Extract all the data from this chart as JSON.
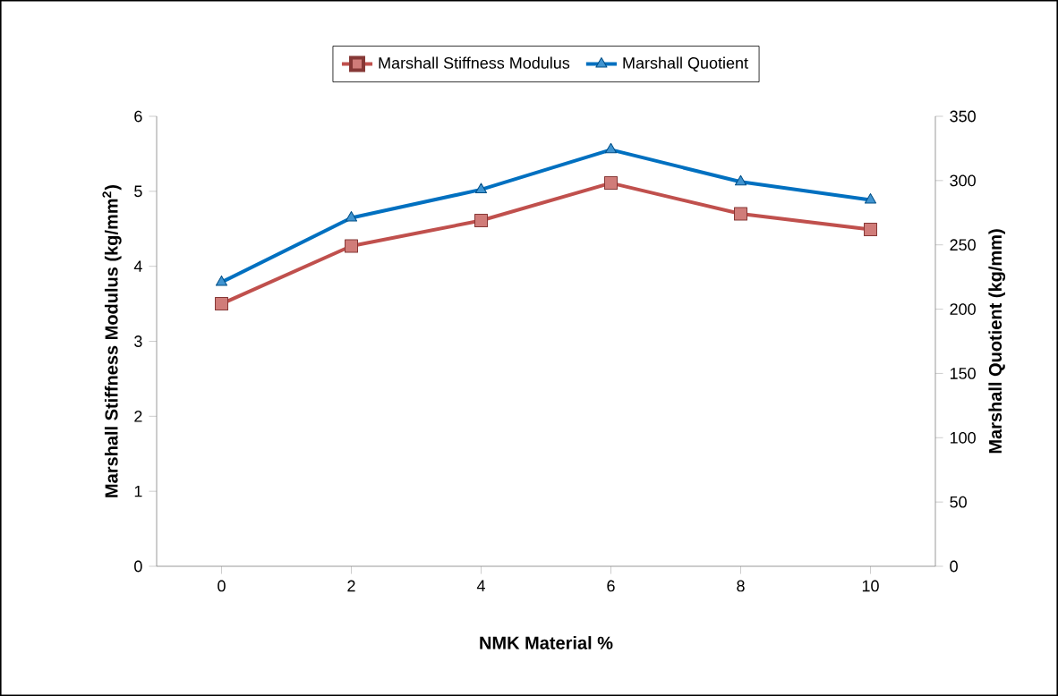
{
  "chart_data": {
    "type": "line",
    "xlabel": "NMK Material %",
    "ylabel": "Marshall Stiffness Modulus (kg/mm$^{2}$)",
    "y2label": "Marshall Quotient (kg/mm)",
    "categories": [
      "0",
      "2",
      "4",
      "6",
      "8",
      "10"
    ],
    "series": [
      {
        "name": "Marshall Stiffness Modulus",
        "color": "#c0504d",
        "marker": "square",
        "values": [
          3.5,
          4.27,
          4.61,
          5.11,
          4.7,
          4.49
        ]
      },
      {
        "name": "Marshall Quotient",
        "color": "#0070c0",
        "marker": "triangle",
        "axis": "y2",
        "values": [
          221,
          271,
          293,
          324,
          299,
          285
        ]
      }
    ],
    "ylim": [
      0,
      6
    ],
    "yticks": [
      0,
      1,
      2,
      3,
      4,
      5,
      6
    ],
    "y2lim": [
      0,
      350
    ],
    "y2ticks": [
      0,
      50,
      100,
      150,
      200,
      250,
      300,
      350
    ],
    "legend": "top",
    "grid": false,
    "line_style": "solid"
  }
}
